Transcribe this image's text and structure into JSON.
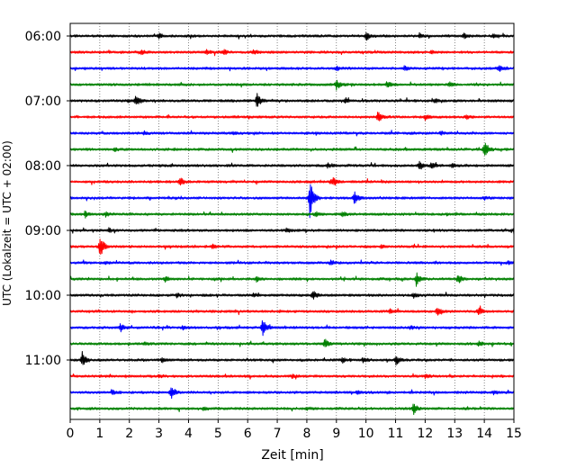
{
  "chart_data": {
    "type": "line",
    "xlabel": "Zeit  [min]",
    "ylabel": "UTC (Lokalzeit = UTC + 02:00)",
    "xlim": [
      0,
      15
    ],
    "x_ticks": [
      0,
      1,
      2,
      3,
      4,
      5,
      6,
      7,
      8,
      9,
      10,
      11,
      12,
      13,
      14,
      15
    ],
    "y_tick_labels": [
      "06:00",
      "07:00",
      "08:00",
      "09:00",
      "10:00",
      "11:00"
    ],
    "grid": "vertical-dotted",
    "row_interval_minutes": 15,
    "row_colors": [
      "#000000",
      "#ff0000",
      "#0000ff",
      "#008000"
    ],
    "series": [
      {
        "start": "06:00",
        "color": "#000000",
        "events": [
          [
            3.0,
            0.3
          ],
          [
            10.0,
            0.6
          ],
          [
            11.8,
            0.3
          ],
          [
            13.3,
            0.3
          ],
          [
            14.3,
            0.25
          ]
        ]
      },
      {
        "start": "06:15",
        "color": "#ff0000",
        "events": [
          [
            2.4,
            0.3
          ],
          [
            4.6,
            0.3
          ],
          [
            5.2,
            0.3
          ],
          [
            6.2,
            0.3
          ],
          [
            12.2,
            0.2
          ]
        ]
      },
      {
        "start": "06:30",
        "color": "#0000ff",
        "events": [
          [
            9.0,
            0.3
          ],
          [
            11.3,
            0.3
          ],
          [
            14.5,
            0.5
          ]
        ]
      },
      {
        "start": "06:45",
        "color": "#008000",
        "events": [
          [
            9.0,
            0.6
          ],
          [
            10.7,
            0.4
          ],
          [
            12.8,
            0.3
          ]
        ]
      },
      {
        "start": "07:00",
        "color": "#000000",
        "events": [
          [
            2.2,
            0.8
          ],
          [
            6.3,
            1.0
          ],
          [
            9.3,
            0.3
          ],
          [
            12.3,
            0.3
          ]
        ]
      },
      {
        "start": "07:15",
        "color": "#ff0000",
        "events": [
          [
            10.4,
            0.7
          ],
          [
            12.0,
            0.3
          ],
          [
            13.4,
            0.2
          ]
        ]
      },
      {
        "start": "07:30",
        "color": "#0000ff",
        "events": [
          [
            2.5,
            0.2
          ],
          [
            5.5,
            0.2
          ],
          [
            12.5,
            0.2
          ]
        ]
      },
      {
        "start": "07:45",
        "color": "#008000",
        "events": [
          [
            1.5,
            0.2
          ],
          [
            14.0,
            1.1
          ]
        ]
      },
      {
        "start": "08:00",
        "color": "#000000",
        "events": [
          [
            8.7,
            0.3
          ],
          [
            11.8,
            0.5
          ],
          [
            12.2,
            0.4
          ],
          [
            12.9,
            0.3
          ]
        ]
      },
      {
        "start": "08:15",
        "color": "#ff0000",
        "events": [
          [
            3.7,
            0.6
          ],
          [
            8.8,
            0.3
          ],
          [
            8.9,
            0.4
          ]
        ]
      },
      {
        "start": "08:30",
        "color": "#0000ff",
        "events": [
          [
            8.1,
            2.6
          ],
          [
            9.6,
            0.9
          ],
          [
            14.0,
            0.2
          ]
        ]
      },
      {
        "start": "08:45",
        "color": "#008000",
        "events": [
          [
            0.5,
            0.4
          ],
          [
            1.2,
            0.3
          ],
          [
            8.3,
            0.3
          ],
          [
            9.2,
            0.3
          ]
        ]
      },
      {
        "start": "09:00",
        "color": "#000000",
        "events": [
          [
            1.3,
            0.3
          ],
          [
            7.3,
            0.3
          ],
          [
            15.0,
            0.4
          ]
        ]
      },
      {
        "start": "09:15",
        "color": "#ff0000",
        "events": [
          [
            1.0,
            1.5
          ],
          [
            4.8,
            0.2
          ],
          [
            10.5,
            0.2
          ]
        ]
      },
      {
        "start": "09:30",
        "color": "#0000ff",
        "events": [
          [
            1.2,
            0.2
          ],
          [
            8.8,
            0.3
          ],
          [
            14.8,
            0.2
          ]
        ]
      },
      {
        "start": "09:45",
        "color": "#008000",
        "events": [
          [
            3.2,
            0.3
          ],
          [
            6.3,
            0.3
          ],
          [
            11.7,
            0.8
          ],
          [
            13.1,
            0.6
          ]
        ]
      },
      {
        "start": "10:00",
        "color": "#000000",
        "events": [
          [
            3.6,
            0.3
          ],
          [
            6.2,
            0.2
          ],
          [
            8.2,
            0.6
          ],
          [
            11.6,
            0.3
          ]
        ]
      },
      {
        "start": "10:15",
        "color": "#ff0000",
        "events": [
          [
            10.8,
            0.3
          ],
          [
            12.4,
            0.5
          ],
          [
            13.8,
            0.6
          ]
        ]
      },
      {
        "start": "10:30",
        "color": "#0000ff",
        "events": [
          [
            1.7,
            0.5
          ],
          [
            3.8,
            0.2
          ],
          [
            6.5,
            1.2
          ],
          [
            11.5,
            0.2
          ]
        ]
      },
      {
        "start": "10:45",
        "color": "#008000",
        "events": [
          [
            2.5,
            0.2
          ],
          [
            8.6,
            0.6
          ],
          [
            13.8,
            0.3
          ]
        ]
      },
      {
        "start": "11:00",
        "color": "#000000",
        "events": [
          [
            0.4,
            1.0
          ],
          [
            3.1,
            0.3
          ],
          [
            9.2,
            0.3
          ],
          [
            9.9,
            0.3
          ],
          [
            11.0,
            0.6
          ]
        ]
      },
      {
        "start": "11:15",
        "color": "#ff0000",
        "events": [
          [
            3.0,
            0.2
          ],
          [
            7.5,
            0.2
          ],
          [
            12.0,
            0.2
          ]
        ]
      },
      {
        "start": "11:30",
        "color": "#0000ff",
        "events": [
          [
            1.4,
            0.3
          ],
          [
            3.4,
            0.9
          ],
          [
            9.7,
            0.3
          ],
          [
            14.3,
            0.2
          ]
        ]
      },
      {
        "start": "11:45",
        "color": "#008000",
        "events": [
          [
            4.5,
            0.2
          ],
          [
            8.0,
            0.2
          ],
          [
            11.6,
            0.7
          ]
        ]
      }
    ]
  }
}
